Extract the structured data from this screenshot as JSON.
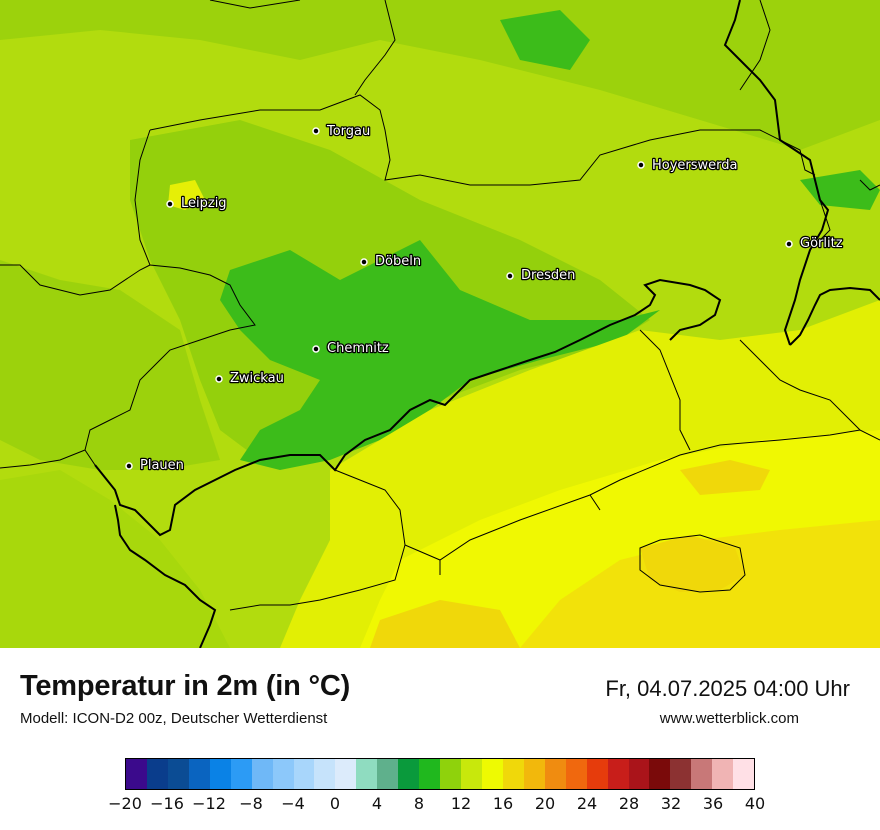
{
  "map": {
    "cities": [
      {
        "name": "Torgau"
      },
      {
        "name": "Hoyerswerda"
      },
      {
        "name": "Leipzig"
      },
      {
        "name": "Görlitz"
      },
      {
        "name": "Döbeln"
      },
      {
        "name": "Dresden"
      },
      {
        "name": "Chemnitz"
      },
      {
        "name": "Zwickau"
      },
      {
        "name": "Plauen"
      }
    ]
  },
  "info": {
    "title": "Temperatur in 2m (in °C)",
    "model": "Modell: ICON-D2 00z, Deutscher Wetterdienst",
    "datetime": "Fr, 04.07.2025 04:00 Uhr",
    "website": "www.wetterblick.com"
  },
  "legend": {
    "colors": [
      "#3b0a8c",
      "#0a3d8c",
      "#0b4c94",
      "#0a64c0",
      "#0a82e6",
      "#2c9bf5",
      "#6fb8f7",
      "#8cc8fa",
      "#a8d6fb",
      "#c6e3fb",
      "#dcebfb",
      "#8fdcc0",
      "#5fb08c",
      "#0a9a3c",
      "#20b81e",
      "#8fd20c",
      "#c8e80c",
      "#eefa02",
      "#f0d80a",
      "#f2b80c",
      "#f08c10",
      "#f0680e",
      "#e63c0c",
      "#c81e1a",
      "#aa141a",
      "#7a0a0a",
      "#8c3232",
      "#c87878",
      "#f0b4b4",
      "#ffe0e6"
    ],
    "ticks": [
      "−20",
      "−16",
      "−12",
      "−8",
      "−4",
      "0",
      "4",
      "8",
      "12",
      "16",
      "20",
      "24",
      "28",
      "32",
      "36",
      "40"
    ]
  }
}
